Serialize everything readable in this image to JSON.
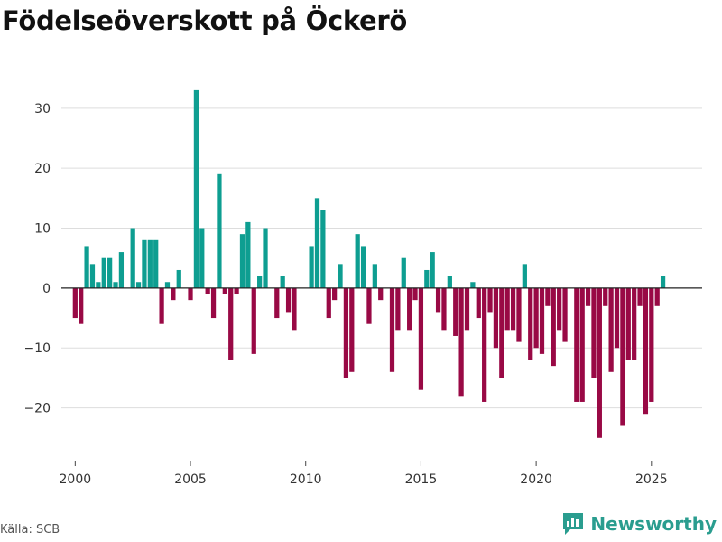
{
  "title": "Födelseöverskott på Öckerö",
  "source": "Källa: SCB",
  "brand": {
    "name": "Newsworthy",
    "icon": "newsworthy-logo-icon"
  },
  "colors": {
    "positive": "#0e9e91",
    "negative": "#990945",
    "grid": "#dddddd",
    "zero_line": "#222222"
  },
  "chart_data": {
    "type": "bar",
    "title": "Födelseöverskott på Öckerö",
    "xlabel": "",
    "ylabel": "",
    "frequency": "quarterly",
    "start": 2000,
    "xlim": [
      1999.4,
      2027.2
    ],
    "ylim": [
      -28.5,
      36
    ],
    "x_ticks": [
      2000,
      2005,
      2010,
      2015,
      2020,
      2025
    ],
    "x_tick_labels": [
      "2000",
      "2005",
      "2010",
      "2015",
      "2020",
      "2025"
    ],
    "y_ticks": [
      -20,
      -10,
      0,
      10,
      20,
      30
    ],
    "y_tick_labels": [
      "−20",
      "−10",
      "0",
      "10",
      "20",
      "30"
    ],
    "values": [
      -5,
      -6,
      7,
      4,
      1,
      5,
      5,
      1,
      6,
      0,
      10,
      1,
      8,
      8,
      8,
      -6,
      1,
      -2,
      3,
      0,
      -2,
      33,
      10,
      -1,
      -5,
      19,
      -1,
      -12,
      -1,
      9,
      11,
      -11,
      2,
      10,
      0,
      -5,
      2,
      -4,
      -7,
      0,
      0,
      7,
      15,
      13,
      -5,
      -2,
      4,
      -15,
      -14,
      9,
      7,
      -6,
      4,
      -2,
      0,
      -14,
      -7,
      5,
      -7,
      -2,
      -17,
      3,
      6,
      -4,
      -7,
      2,
      -8,
      -18,
      -7,
      1,
      -5,
      -19,
      -4,
      -10,
      -15,
      -7,
      -7,
      -9,
      4,
      -12,
      -10,
      -11,
      -3,
      -13,
      -7,
      -9,
      0,
      -19,
      -19,
      -3,
      -15,
      -25,
      -3,
      -14,
      -10,
      -23,
      -12,
      -12,
      -3,
      -21,
      -19,
      -3,
      2
    ]
  }
}
